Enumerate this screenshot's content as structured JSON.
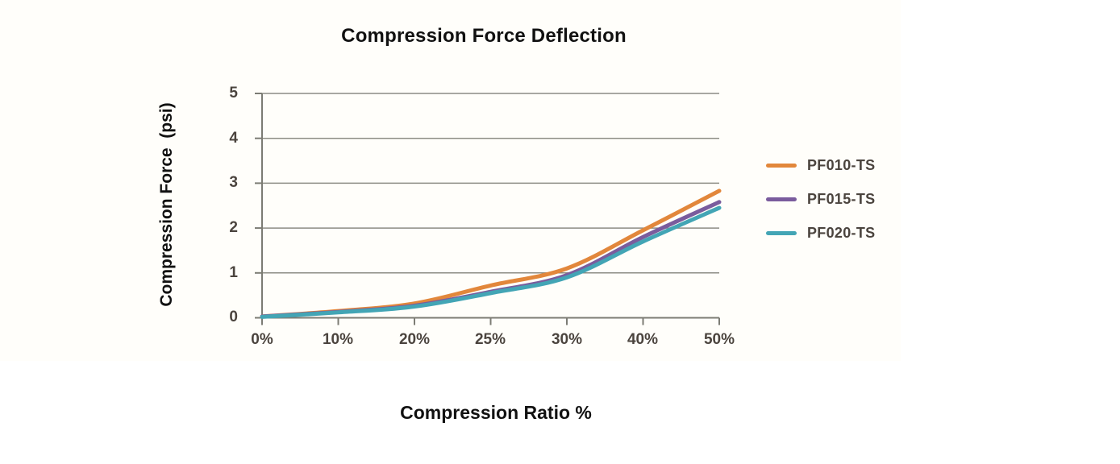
{
  "chart_data": {
    "type": "line",
    "title": "Compression Force Deflection",
    "xlabel": "Compression Ratio %",
    "ylabel": "Compression Force  (psi)",
    "categories": [
      "0%",
      "10%",
      "20%",
      "25%",
      "30%",
      "40%",
      "50%"
    ],
    "series": [
      {
        "name": "PF010-TS",
        "color": "#e2873b",
        "values": [
          0.03,
          0.15,
          0.32,
          0.72,
          1.1,
          1.95,
          2.83
        ]
      },
      {
        "name": "PF015-TS",
        "color": "#7a5c9d",
        "values": [
          0.03,
          0.13,
          0.27,
          0.58,
          0.95,
          1.8,
          2.58
        ]
      },
      {
        "name": "PF020-TS",
        "color": "#43a5b5",
        "values": [
          0.02,
          0.12,
          0.25,
          0.55,
          0.9,
          1.7,
          2.45
        ]
      }
    ],
    "ylim": [
      0,
      5
    ],
    "yticks_top_to_bottom": [
      5,
      4,
      3,
      2,
      1,
      0
    ],
    "grid": "horizontal",
    "legend_position": "right"
  },
  "colors": {
    "grid": "#8c8c84",
    "axis": "#7c7c74",
    "tick_text": "#4b443e",
    "title_text": "#111111",
    "background": "#ffffff"
  }
}
